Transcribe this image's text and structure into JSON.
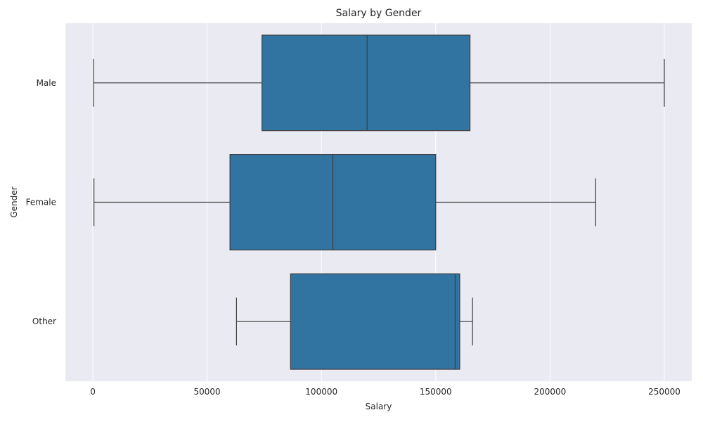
{
  "chart_data": {
    "type": "box",
    "orientation": "horizontal",
    "title": "Salary by Gender",
    "xlabel": "Salary",
    "ylabel": "Gender",
    "xlim": [
      -12000,
      262000
    ],
    "xticks": [
      0,
      50000,
      100000,
      150000,
      200000,
      250000
    ],
    "xtick_labels": [
      "0",
      "50000",
      "100000",
      "150000",
      "200000",
      "250000"
    ],
    "grid": true,
    "categories": [
      "Male",
      "Female",
      "Other"
    ],
    "boxes": [
      {
        "category": "Male",
        "whisker_low": 350,
        "q1": 74000,
        "median": 120000,
        "q3": 165000,
        "whisker_high": 250000
      },
      {
        "category": "Female",
        "whisker_low": 500,
        "q1": 60000,
        "median": 105000,
        "q3": 150000,
        "whisker_high": 220000
      },
      {
        "category": "Other",
        "whisker_low": 62852,
        "q1": 86500,
        "median": 158500,
        "q3": 160500,
        "whisker_high": 166109
      }
    ],
    "colors": {
      "box_fill": "#3274a1",
      "line": "#3d3d3d",
      "plot_bg": "#eaeaf2",
      "grid": "#ffffff"
    }
  }
}
